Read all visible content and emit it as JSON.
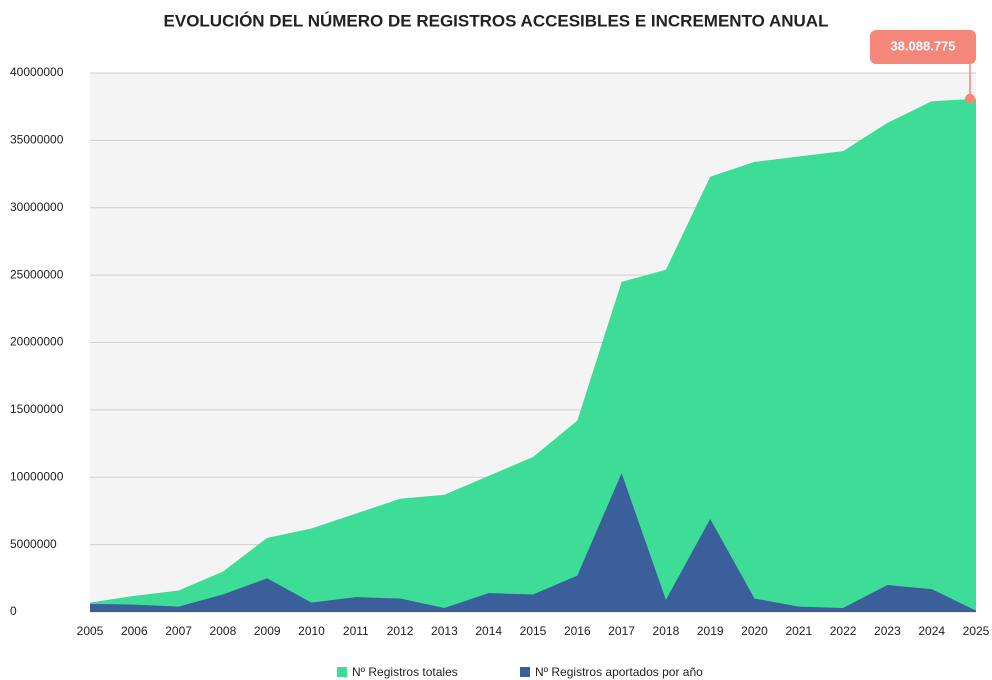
{
  "chart_data": {
    "type": "area",
    "title": "EVOLUCIÓN DEL NÚMERO DE REGISTROS ACCESIBLES E INCREMENTO ANUAL",
    "categories": [
      "2005",
      "2006",
      "2007",
      "2008",
      "2009",
      "2010",
      "2011",
      "2012",
      "2013",
      "2014",
      "2015",
      "2016",
      "2017",
      "2018",
      "2019",
      "2020",
      "2021",
      "2022",
      "2023",
      "2024",
      "2025"
    ],
    "series": [
      {
        "name": "Nº Registros totales",
        "color": "#3ddc97",
        "values": [
          700000,
          1200000,
          1600000,
          3000000,
          5500000,
          6200000,
          7300000,
          8400000,
          8700000,
          10100000,
          11500000,
          14200000,
          24500000,
          25400000,
          32300000,
          33400000,
          33800000,
          34200000,
          36300000,
          37900000,
          38088775
        ]
      },
      {
        "name": "Nº Registros aportados por año",
        "color": "#3a5f9a",
        "values": [
          600000,
          550000,
          400000,
          1300000,
          2500000,
          700000,
          1100000,
          1000000,
          300000,
          1400000,
          1300000,
          2700000,
          10300000,
          900000,
          6900000,
          1000000,
          400000,
          300000,
          2000000,
          1700000,
          100000
        ]
      }
    ],
    "annotation": "38.088.775",
    "ylim": [
      0,
      40000000
    ],
    "yticks": [
      0,
      5000000,
      10000000,
      15000000,
      20000000,
      25000000,
      30000000,
      35000000,
      40000000
    ],
    "grid": true
  }
}
